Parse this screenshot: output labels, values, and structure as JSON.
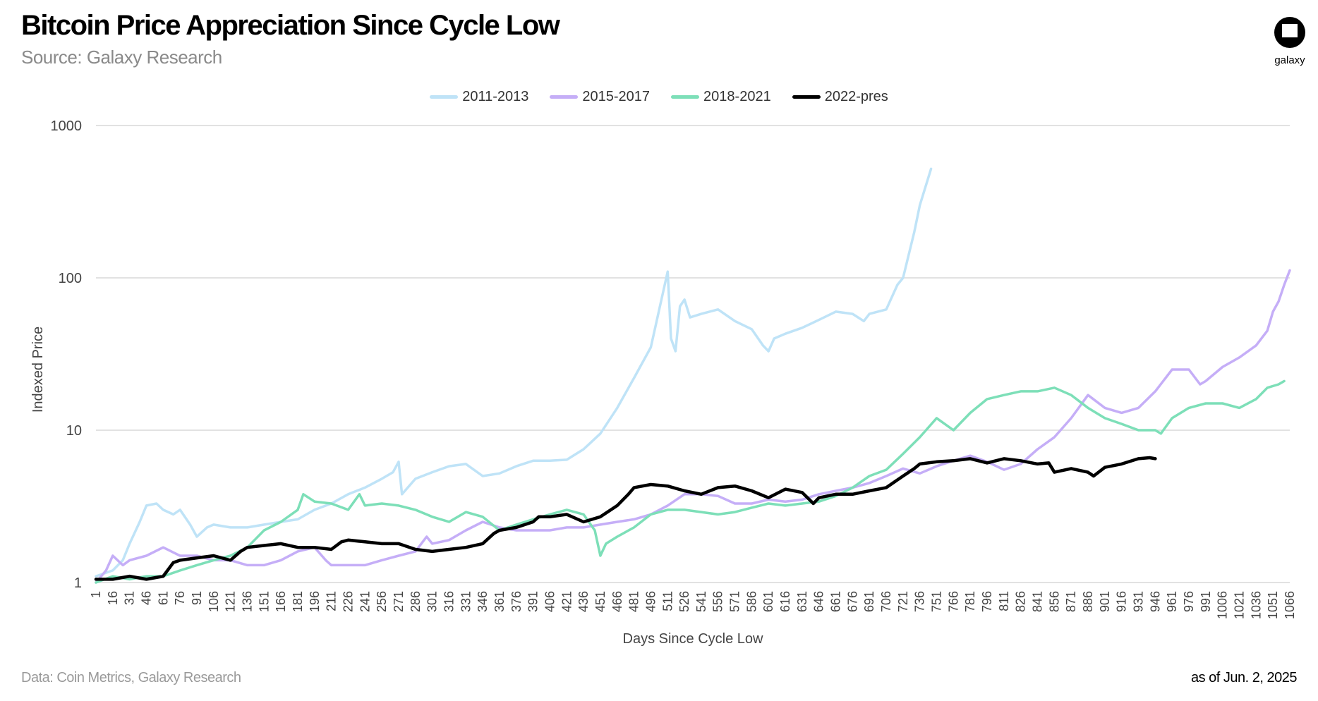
{
  "header": {
    "title": "Bitcoin Price Appreciation Since Cycle Low",
    "subtitle": "Source: Galaxy Research"
  },
  "logo": {
    "text": "galaxy",
    "icon": "galaxy-logo-icon"
  },
  "footer": {
    "left": "Data: Coin Metrics, Galaxy Research",
    "right": "as of Jun. 2, 2025"
  },
  "chart_data": {
    "type": "line",
    "xlabel": "Days Since Cycle Low",
    "ylabel": "Indexed Price",
    "yscale": "log",
    "ylim": [
      1,
      1000
    ],
    "xlim": [
      1,
      1066
    ],
    "yticks": [
      "1",
      "10",
      "100",
      "1000"
    ],
    "xticks": [
      "1",
      "16",
      "31",
      "46",
      "61",
      "76",
      "91",
      "106",
      "121",
      "136",
      "151",
      "166",
      "181",
      "196",
      "211",
      "226",
      "241",
      "256",
      "271",
      "286",
      "301",
      "316",
      "331",
      "346",
      "361",
      "376",
      "391",
      "406",
      "421",
      "436",
      "451",
      "466",
      "481",
      "496",
      "511",
      "526",
      "541",
      "556",
      "571",
      "586",
      "601",
      "616",
      "631",
      "646",
      "661",
      "676",
      "691",
      "706",
      "721",
      "736",
      "751",
      "766",
      "781",
      "796",
      "811",
      "826",
      "841",
      "856",
      "871",
      "886",
      "901",
      "916",
      "931",
      "946",
      "961",
      "976",
      "991",
      "1006",
      "1021",
      "1036",
      "1051",
      "1066"
    ],
    "grid": true,
    "legend_position": "top-center",
    "series": [
      {
        "name": "2011-2013",
        "color": "#bfe3f7",
        "points": [
          [
            1,
            1.1
          ],
          [
            16,
            1.2
          ],
          [
            25,
            1.4
          ],
          [
            31,
            1.8
          ],
          [
            40,
            2.5
          ],
          [
            46,
            3.2
          ],
          [
            55,
            3.3
          ],
          [
            61,
            3.0
          ],
          [
            70,
            2.8
          ],
          [
            76,
            3.0
          ],
          [
            85,
            2.4
          ],
          [
            91,
            2.0
          ],
          [
            100,
            2.3
          ],
          [
            106,
            2.4
          ],
          [
            121,
            2.3
          ],
          [
            136,
            2.3
          ],
          [
            151,
            2.4
          ],
          [
            166,
            2.5
          ],
          [
            181,
            2.6
          ],
          [
            196,
            3.0
          ],
          [
            211,
            3.3
          ],
          [
            226,
            3.8
          ],
          [
            241,
            4.2
          ],
          [
            256,
            4.8
          ],
          [
            266,
            5.3
          ],
          [
            271,
            6.2
          ],
          [
            274,
            3.8
          ],
          [
            286,
            4.8
          ],
          [
            301,
            5.3
          ],
          [
            316,
            5.8
          ],
          [
            331,
            6.0
          ],
          [
            346,
            5.0
          ],
          [
            361,
            5.2
          ],
          [
            376,
            5.8
          ],
          [
            391,
            6.3
          ],
          [
            406,
            6.3
          ],
          [
            421,
            6.4
          ],
          [
            436,
            7.5
          ],
          [
            451,
            9.5
          ],
          [
            466,
            14
          ],
          [
            481,
            22
          ],
          [
            496,
            35
          ],
          [
            506,
            75
          ],
          [
            511,
            110
          ],
          [
            514,
            40
          ],
          [
            518,
            33
          ],
          [
            522,
            65
          ],
          [
            526,
            72
          ],
          [
            531,
            55
          ],
          [
            541,
            58
          ],
          [
            556,
            62
          ],
          [
            571,
            52
          ],
          [
            586,
            46
          ],
          [
            596,
            36
          ],
          [
            601,
            33
          ],
          [
            606,
            40
          ],
          [
            616,
            43
          ],
          [
            631,
            47
          ],
          [
            646,
            53
          ],
          [
            661,
            60
          ],
          [
            676,
            58
          ],
          [
            686,
            52
          ],
          [
            691,
            58
          ],
          [
            706,
            62
          ],
          [
            716,
            90
          ],
          [
            721,
            100
          ],
          [
            731,
            200
          ],
          [
            736,
            300
          ],
          [
            746,
            520
          ]
        ]
      },
      {
        "name": "2015-2017",
        "color": "#c5aef7",
        "points": [
          [
            1,
            1.0
          ],
          [
            10,
            1.2
          ],
          [
            16,
            1.5
          ],
          [
            25,
            1.3
          ],
          [
            31,
            1.4
          ],
          [
            46,
            1.5
          ],
          [
            61,
            1.7
          ],
          [
            76,
            1.5
          ],
          [
            91,
            1.5
          ],
          [
            106,
            1.4
          ],
          [
            121,
            1.4
          ],
          [
            136,
            1.3
          ],
          [
            151,
            1.3
          ],
          [
            166,
            1.4
          ],
          [
            181,
            1.6
          ],
          [
            196,
            1.7
          ],
          [
            206,
            1.4
          ],
          [
            211,
            1.3
          ],
          [
            226,
            1.3
          ],
          [
            241,
            1.3
          ],
          [
            256,
            1.4
          ],
          [
            271,
            1.5
          ],
          [
            286,
            1.6
          ],
          [
            296,
            2.0
          ],
          [
            301,
            1.8
          ],
          [
            316,
            1.9
          ],
          [
            331,
            2.2
          ],
          [
            346,
            2.5
          ],
          [
            361,
            2.3
          ],
          [
            376,
            2.2
          ],
          [
            391,
            2.2
          ],
          [
            406,
            2.2
          ],
          [
            421,
            2.3
          ],
          [
            436,
            2.3
          ],
          [
            451,
            2.4
          ],
          [
            466,
            2.5
          ],
          [
            481,
            2.6
          ],
          [
            496,
            2.8
          ],
          [
            511,
            3.2
          ],
          [
            526,
            3.8
          ],
          [
            541,
            3.8
          ],
          [
            556,
            3.7
          ],
          [
            571,
            3.3
          ],
          [
            586,
            3.3
          ],
          [
            601,
            3.5
          ],
          [
            616,
            3.4
          ],
          [
            631,
            3.5
          ],
          [
            646,
            3.8
          ],
          [
            661,
            4.0
          ],
          [
            676,
            4.2
          ],
          [
            691,
            4.5
          ],
          [
            706,
            5.0
          ],
          [
            721,
            5.6
          ],
          [
            736,
            5.2
          ],
          [
            751,
            5.8
          ],
          [
            766,
            6.3
          ],
          [
            781,
            6.8
          ],
          [
            796,
            6.2
          ],
          [
            811,
            5.5
          ],
          [
            826,
            6.0
          ],
          [
            841,
            7.5
          ],
          [
            856,
            9.0
          ],
          [
            871,
            12
          ],
          [
            886,
            17
          ],
          [
            901,
            14
          ],
          [
            916,
            13
          ],
          [
            931,
            14
          ],
          [
            946,
            18
          ],
          [
            961,
            25
          ],
          [
            976,
            25
          ],
          [
            986,
            20
          ],
          [
            991,
            21
          ],
          [
            1006,
            26
          ],
          [
            1021,
            30
          ],
          [
            1036,
            36
          ],
          [
            1046,
            45
          ],
          [
            1051,
            60
          ],
          [
            1056,
            70
          ],
          [
            1061,
            90
          ],
          [
            1066,
            112
          ]
        ]
      },
      {
        "name": "2018-2021",
        "color": "#7ddfb8",
        "points": [
          [
            1,
            1.0
          ],
          [
            16,
            1.1
          ],
          [
            31,
            1.05
          ],
          [
            46,
            1.1
          ],
          [
            61,
            1.1
          ],
          [
            76,
            1.2
          ],
          [
            91,
            1.3
          ],
          [
            106,
            1.4
          ],
          [
            121,
            1.5
          ],
          [
            136,
            1.7
          ],
          [
            151,
            2.2
          ],
          [
            166,
            2.5
          ],
          [
            181,
            3.0
          ],
          [
            186,
            3.8
          ],
          [
            196,
            3.4
          ],
          [
            211,
            3.3
          ],
          [
            226,
            3.0
          ],
          [
            236,
            3.8
          ],
          [
            241,
            3.2
          ],
          [
            256,
            3.3
          ],
          [
            271,
            3.2
          ],
          [
            286,
            3.0
          ],
          [
            301,
            2.7
          ],
          [
            316,
            2.5
          ],
          [
            331,
            2.9
          ],
          [
            346,
            2.7
          ],
          [
            361,
            2.2
          ],
          [
            376,
            2.4
          ],
          [
            391,
            2.6
          ],
          [
            406,
            2.8
          ],
          [
            421,
            3.0
          ],
          [
            436,
            2.8
          ],
          [
            446,
            2.2
          ],
          [
            451,
            1.5
          ],
          [
            456,
            1.8
          ],
          [
            466,
            2.0
          ],
          [
            481,
            2.3
          ],
          [
            496,
            2.8
          ],
          [
            511,
            3.0
          ],
          [
            526,
            3.0
          ],
          [
            541,
            2.9
          ],
          [
            556,
            2.8
          ],
          [
            571,
            2.9
          ],
          [
            586,
            3.1
          ],
          [
            601,
            3.3
          ],
          [
            616,
            3.2
          ],
          [
            631,
            3.3
          ],
          [
            646,
            3.4
          ],
          [
            661,
            3.7
          ],
          [
            676,
            4.2
          ],
          [
            691,
            5.0
          ],
          [
            706,
            5.5
          ],
          [
            721,
            7.0
          ],
          [
            736,
            9.0
          ],
          [
            751,
            12
          ],
          [
            766,
            10
          ],
          [
            781,
            13
          ],
          [
            796,
            16
          ],
          [
            811,
            17
          ],
          [
            826,
            18
          ],
          [
            841,
            18
          ],
          [
            856,
            19
          ],
          [
            871,
            17
          ],
          [
            886,
            14
          ],
          [
            901,
            12
          ],
          [
            916,
            11
          ],
          [
            931,
            10
          ],
          [
            946,
            10
          ],
          [
            951,
            9.5
          ],
          [
            961,
            12
          ],
          [
            976,
            14
          ],
          [
            991,
            15
          ],
          [
            1006,
            15
          ],
          [
            1021,
            14
          ],
          [
            1036,
            16
          ],
          [
            1046,
            19
          ],
          [
            1056,
            20
          ],
          [
            1061,
            21
          ]
        ]
      },
      {
        "name": "2022-pres",
        "color": "#000000",
        "points": [
          [
            1,
            1.05
          ],
          [
            16,
            1.05
          ],
          [
            31,
            1.1
          ],
          [
            46,
            1.05
          ],
          [
            61,
            1.1
          ],
          [
            70,
            1.35
          ],
          [
            76,
            1.4
          ],
          [
            91,
            1.45
          ],
          [
            106,
            1.5
          ],
          [
            121,
            1.4
          ],
          [
            130,
            1.6
          ],
          [
            136,
            1.7
          ],
          [
            151,
            1.75
          ],
          [
            166,
            1.8
          ],
          [
            181,
            1.7
          ],
          [
            196,
            1.7
          ],
          [
            211,
            1.65
          ],
          [
            220,
            1.85
          ],
          [
            226,
            1.9
          ],
          [
            241,
            1.85
          ],
          [
            256,
            1.8
          ],
          [
            271,
            1.8
          ],
          [
            286,
            1.65
          ],
          [
            301,
            1.6
          ],
          [
            316,
            1.65
          ],
          [
            331,
            1.7
          ],
          [
            346,
            1.8
          ],
          [
            356,
            2.1
          ],
          [
            361,
            2.2
          ],
          [
            376,
            2.3
          ],
          [
            391,
            2.5
          ],
          [
            396,
            2.7
          ],
          [
            406,
            2.7
          ],
          [
            421,
            2.8
          ],
          [
            436,
            2.5
          ],
          [
            451,
            2.7
          ],
          [
            466,
            3.2
          ],
          [
            476,
            3.8
          ],
          [
            481,
            4.2
          ],
          [
            496,
            4.4
          ],
          [
            511,
            4.3
          ],
          [
            526,
            4.0
          ],
          [
            541,
            3.8
          ],
          [
            556,
            4.2
          ],
          [
            571,
            4.3
          ],
          [
            586,
            4.0
          ],
          [
            601,
            3.6
          ],
          [
            616,
            4.1
          ],
          [
            631,
            3.9
          ],
          [
            641,
            3.3
          ],
          [
            646,
            3.6
          ],
          [
            661,
            3.8
          ],
          [
            676,
            3.8
          ],
          [
            691,
            4.0
          ],
          [
            706,
            4.2
          ],
          [
            721,
            5.0
          ],
          [
            731,
            5.6
          ],
          [
            736,
            6.0
          ],
          [
            751,
            6.2
          ],
          [
            766,
            6.3
          ],
          [
            781,
            6.5
          ],
          [
            796,
            6.1
          ],
          [
            811,
            6.5
          ],
          [
            826,
            6.3
          ],
          [
            841,
            6.0
          ],
          [
            851,
            6.1
          ],
          [
            856,
            5.3
          ],
          [
            871,
            5.6
          ],
          [
            886,
            5.3
          ],
          [
            891,
            5.0
          ],
          [
            901,
            5.7
          ],
          [
            916,
            6.0
          ],
          [
            931,
            6.5
          ],
          [
            941,
            6.6
          ],
          [
            946,
            6.5
          ]
        ]
      }
    ]
  }
}
